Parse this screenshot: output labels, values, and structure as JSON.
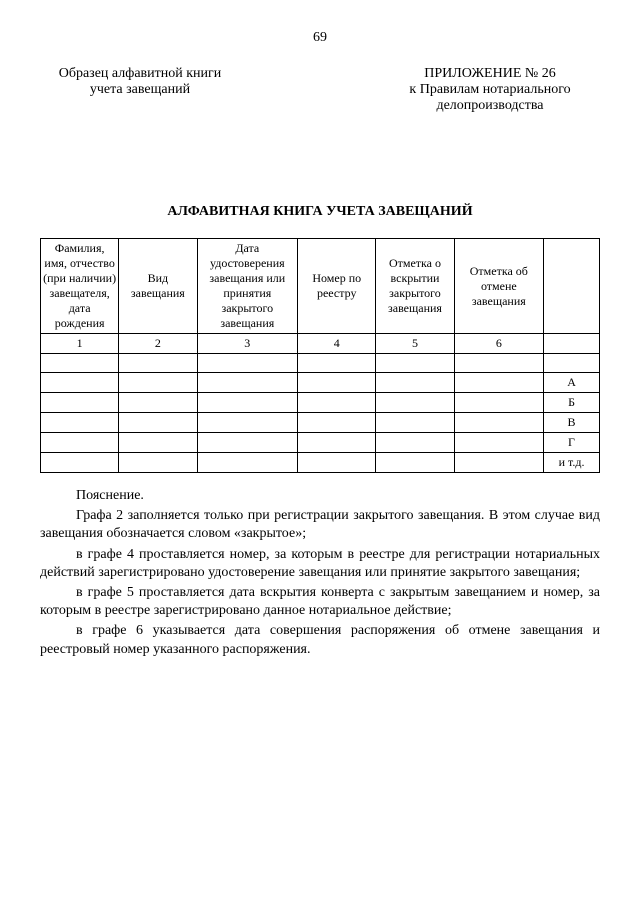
{
  "page_number": "69",
  "header_left_l1": "Образец алфавитной книги",
  "header_left_l2": "учета завещаний",
  "header_right_l1": "ПРИЛОЖЕНИЕ № 26",
  "header_right_l2": "к Правилам нотариального",
  "header_right_l3": "делопроизводства",
  "title": "АЛФАВИТНАЯ КНИГА УЧЕТА ЗАВЕЩАНИЙ",
  "table": {
    "headers": [
      "Фамилия, имя, отчество (при наличии) завещателя, дата рождения",
      "Вид завещания",
      "Дата удостоверения завещания или принятия закрытого завещания",
      "Номер по реестру",
      "Отметка о вскрытии закрытого завещания",
      "Отметка об отмене завещания",
      ""
    ],
    "column_numbers": [
      "1",
      "2",
      "3",
      "4",
      "5",
      "6",
      ""
    ],
    "letters": [
      "А",
      "Б",
      "В",
      "Г",
      "и т.д."
    ]
  },
  "explain_title": "Пояснение.",
  "explain_p1": "Графа 2 заполняется только при регистрации закрытого завещания. В этом случае вид завещания обозначается словом «закрытое»;",
  "explain_p2": "в графе 4 проставляется номер, за которым в реестре для регистрации нотариальных действий зарегистрировано удостоверение завещания или принятие закрытого завещания;",
  "explain_p3": "в графе 5 проставляется дата вскрытия конверта с закрытым завещанием и номер, за которым в реестре зарегистрировано данное нотариальное действие;",
  "explain_p4": "в графе 6 указывается дата совершения распоряжения об отмене завещания и реестровый номер указанного распоряжения."
}
